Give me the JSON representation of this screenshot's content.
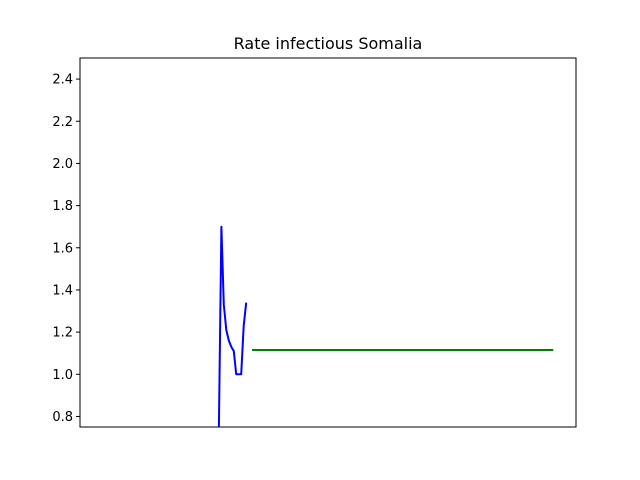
{
  "chart_data": {
    "type": "line",
    "title": "Rate infectious Somalia",
    "xlabel": "",
    "ylabel": "",
    "ylim": [
      0.75,
      2.5
    ],
    "xlim": [
      0,
      100
    ],
    "yticks": [
      "0.8",
      "1.0",
      "1.2",
      "1.4",
      "1.6",
      "1.8",
      "2.0",
      "2.2",
      "2.4"
    ],
    "grid": false,
    "series": [
      {
        "color": "#0000ff",
        "x": [
          28.0,
          28.5,
          29.0,
          29.5,
          30.0,
          30.5,
          31.0,
          31.5,
          32.0,
          32.5,
          33.0,
          33.5,
          34.0,
          34.5
        ],
        "y": [
          0.75,
          1.7,
          1.33,
          1.21,
          1.16,
          1.13,
          1.11,
          1.0,
          1.0,
          1.0,
          1.23,
          1.34,
          null,
          null
        ]
      },
      {
        "color": "#008000",
        "x": [
          34.7,
          95.4
        ],
        "y": [
          1.115,
          1.115
        ]
      }
    ]
  }
}
